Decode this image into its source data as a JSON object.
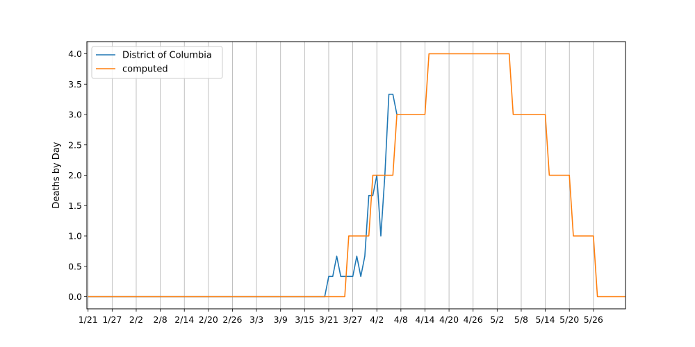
{
  "chart_data": {
    "type": "line",
    "title": "",
    "xlabel": "",
    "ylabel": "Deaths by Day",
    "x_tick_labels": [
      "1/21",
      "1/27",
      "2/2",
      "2/8",
      "2/14",
      "2/20",
      "2/26",
      "3/3",
      "3/9",
      "3/15",
      "3/21",
      "3/27",
      "4/2",
      "4/8",
      "4/14",
      "4/20",
      "4/26",
      "5/2",
      "5/8",
      "5/14",
      "5/20",
      "5/26"
    ],
    "y_tick_labels": [
      "0.0",
      "0.5",
      "1.0",
      "1.5",
      "2.0",
      "2.5",
      "3.0",
      "3.5",
      "4.0"
    ],
    "ylim": [
      -0.2,
      4.2
    ],
    "grid": "vertical",
    "legend_position": "top-left",
    "series": [
      {
        "name": "District of Columbia",
        "color": "#1f77b4",
        "points": [
          [
            "1/21",
            0
          ],
          [
            "3/20",
            0
          ],
          [
            "3/21",
            0.333
          ],
          [
            "3/22",
            0.333
          ],
          [
            "3/23",
            0.667
          ],
          [
            "3/24",
            0.333
          ],
          [
            "3/25",
            0.333
          ],
          [
            "3/26",
            0.333
          ],
          [
            "3/27",
            0.333
          ],
          [
            "3/28",
            0.667
          ],
          [
            "3/29",
            0.333
          ],
          [
            "3/30",
            0.667
          ],
          [
            "3/31",
            1.667
          ],
          [
            "4/1",
            1.667
          ],
          [
            "4/2",
            2.0
          ],
          [
            "4/3",
            1.0
          ],
          [
            "4/4",
            2.0
          ],
          [
            "4/5",
            3.333
          ],
          [
            "4/6",
            3.333
          ],
          [
            "4/7",
            3.0
          ]
        ]
      },
      {
        "name": "computed",
        "color": "#ff7f0e",
        "points": [
          [
            "1/21",
            0
          ],
          [
            "3/25",
            0
          ],
          [
            "3/26",
            1
          ],
          [
            "3/31",
            1
          ],
          [
            "4/1",
            2
          ],
          [
            "4/6",
            2
          ],
          [
            "4/7",
            3
          ],
          [
            "4/14",
            3
          ],
          [
            "4/15",
            4
          ],
          [
            "5/5",
            4
          ],
          [
            "5/6",
            3
          ],
          [
            "5/14",
            3
          ],
          [
            "5/15",
            2
          ],
          [
            "5/20",
            2
          ],
          [
            "5/21",
            1
          ],
          [
            "5/26",
            1
          ],
          [
            "5/27",
            0
          ],
          [
            "6/3",
            0
          ]
        ]
      }
    ]
  }
}
